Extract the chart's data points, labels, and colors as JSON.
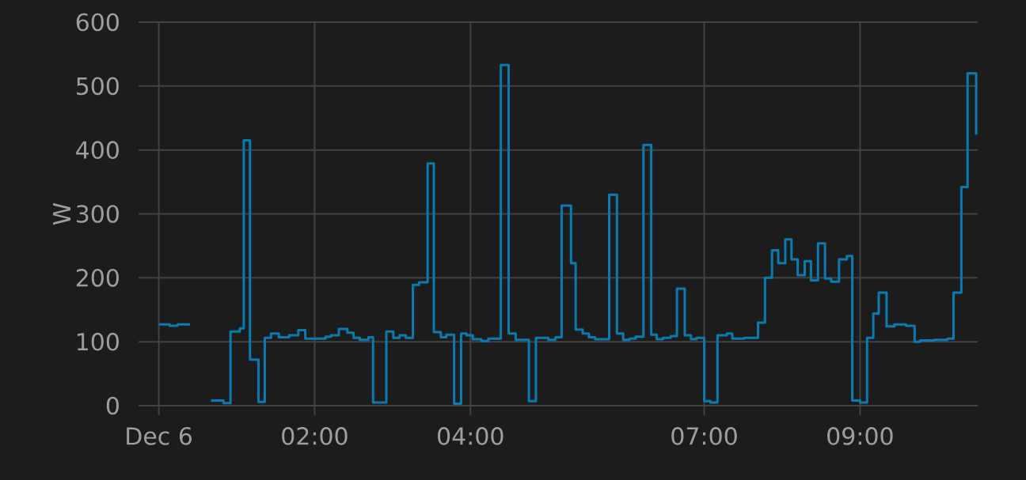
{
  "chart_data": {
    "type": "step",
    "ylabel": "W",
    "color": "#0a7bb0",
    "grid": true,
    "xlim": [
      -0.26,
      10.51
    ],
    "ylim": [
      0,
      600
    ],
    "xticks": [
      {
        "value": 0,
        "label": "Dec 6"
      },
      {
        "value": 2,
        "label": "02:00"
      },
      {
        "value": 4,
        "label": "04:00"
      },
      {
        "value": 7,
        "label": "07:00"
      },
      {
        "value": 9,
        "label": "09:00"
      }
    ],
    "yticks": [
      0,
      100,
      200,
      300,
      400,
      500,
      600
    ],
    "x": [
      0.0,
      0.14,
      0.24,
      0.4,
      0.5,
      0.67,
      0.83,
      0.92,
      1.04,
      1.09,
      1.17,
      1.28,
      1.36,
      1.44,
      1.54,
      1.67,
      1.79,
      1.88,
      2.14,
      2.21,
      2.31,
      2.42,
      2.5,
      2.58,
      2.69,
      2.75,
      2.92,
      3.01,
      3.09,
      3.17,
      3.26,
      3.34,
      3.45,
      3.53,
      3.62,
      3.69,
      3.79,
      3.88,
      3.95,
      4.03,
      4.14,
      4.23,
      4.39,
      4.49,
      4.58,
      4.75,
      4.84,
      5.0,
      5.09,
      5.17,
      5.29,
      5.35,
      5.44,
      5.52,
      5.6,
      5.78,
      5.88,
      5.96,
      6.04,
      6.12,
      6.22,
      6.32,
      6.39,
      6.47,
      6.57,
      6.65,
      6.75,
      6.83,
      6.9,
      7.0,
      7.08,
      7.17,
      7.29,
      7.36,
      7.51,
      7.69,
      7.78,
      7.87,
      7.95,
      8.04,
      8.12,
      8.2,
      8.29,
      8.37,
      8.46,
      8.55,
      8.63,
      8.73,
      8.83,
      8.9,
      9.0,
      9.09,
      9.17,
      9.24,
      9.34,
      9.44,
      9.59,
      9.7,
      9.77,
      9.95,
      10.12,
      10.2,
      10.3,
      10.38,
      10.49
    ],
    "values": [
      127,
      125,
      127,
      127,
      null,
      8,
      4,
      116,
      121,
      415,
      72,
      6,
      106,
      113,
      107,
      110,
      118,
      105,
      108,
      110,
      120,
      114,
      106,
      103,
      107,
      5,
      116,
      106,
      110,
      106,
      189,
      193,
      379,
      115,
      107,
      111,
      3,
      113,
      110,
      104,
      101,
      105,
      533,
      113,
      103,
      7,
      106,
      103,
      107,
      313,
      223,
      119,
      113,
      107,
      104,
      330,
      113,
      103,
      105,
      108,
      408,
      111,
      104,
      106,
      109,
      183,
      110,
      104,
      106,
      7,
      5,
      110,
      113,
      105,
      106,
      130,
      200,
      243,
      223,
      260,
      229,
      204,
      226,
      196,
      254,
      199,
      194,
      229,
      234,
      8,
      5,
      106,
      144,
      177,
      124,
      127,
      125,
      100,
      102,
      103,
      105,
      177,
      342,
      520,
      424
    ]
  }
}
